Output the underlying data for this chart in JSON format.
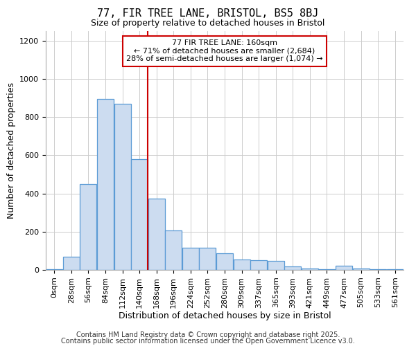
{
  "title": "77, FIR TREE LANE, BRISTOL, BS5 8BJ",
  "subtitle": "Size of property relative to detached houses in Bristol",
  "xlabel": "Distribution of detached houses by size in Bristol",
  "ylabel": "Number of detached properties",
  "bar_values": [
    5,
    68,
    450,
    895,
    870,
    580,
    375,
    205,
    115,
    115,
    88,
    55,
    50,
    47,
    18,
    8,
    5,
    20,
    8,
    3,
    2
  ],
  "bin_labels": [
    "0sqm",
    "28sqm",
    "56sqm",
    "84sqm",
    "112sqm",
    "140sqm",
    "168sqm",
    "196sqm",
    "224sqm",
    "252sqm",
    "280sqm",
    "309sqm",
    "337sqm",
    "365sqm",
    "393sqm",
    "421sqm",
    "449sqm",
    "477sqm",
    "505sqm",
    "533sqm",
    "561sqm"
  ],
  "n_bins": 21,
  "bar_color": "#ccdcf0",
  "bar_edge_color": "#5b9bd5",
  "ylim": [
    0,
    1250
  ],
  "yticks": [
    0,
    200,
    400,
    600,
    800,
    1000,
    1200
  ],
  "annotation_lines": [
    "77 FIR TREE LANE: 160sqm",
    "← 71% of detached houses are smaller (2,684)",
    "28% of semi-detached houses are larger (1,074) →"
  ],
  "annotation_box_facecolor": "#ffffff",
  "annotation_box_edgecolor": "#cc0000",
  "vline_color": "#cc0000",
  "vline_x_bin": 5,
  "background_color": "#ffffff",
  "grid_color": "#cccccc",
  "footer_lines": [
    "Contains HM Land Registry data © Crown copyright and database right 2025.",
    "Contains public sector information licensed under the Open Government Licence v3.0."
  ],
  "title_fontsize": 11,
  "subtitle_fontsize": 9,
  "axis_label_fontsize": 9,
  "tick_fontsize": 8,
  "annotation_fontsize": 8,
  "footer_fontsize": 7
}
